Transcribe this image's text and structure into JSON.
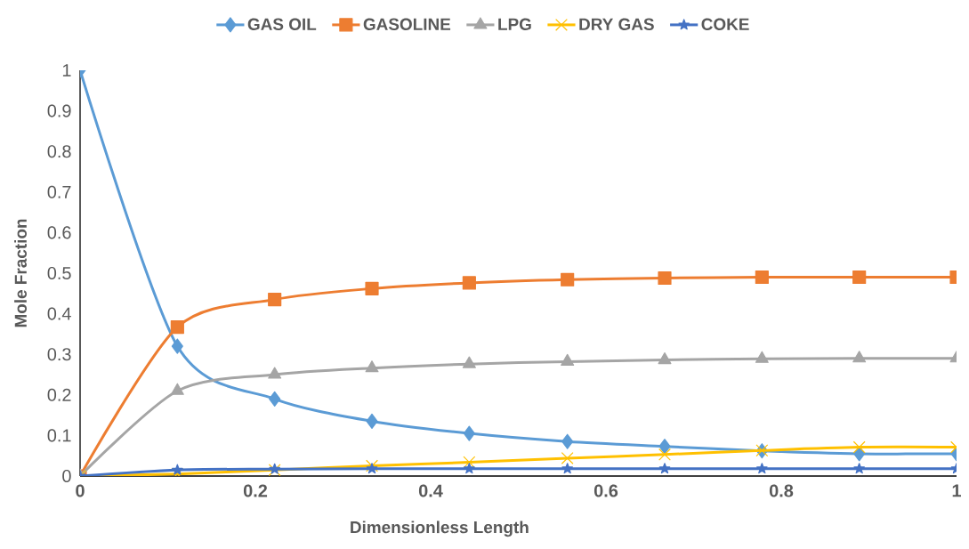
{
  "chart_data": {
    "type": "line",
    "xlabel": "Dimensionless Length",
    "ylabel": "Mole Fraction",
    "xlim": [
      0,
      1
    ],
    "ylim": [
      0,
      1
    ],
    "xticks": [
      0,
      0.2,
      0.4,
      0.6,
      0.8,
      1
    ],
    "yticks": [
      0,
      0.1,
      0.2,
      0.3,
      0.4,
      0.5,
      0.6,
      0.7,
      0.8,
      0.9,
      1
    ],
    "x": [
      0,
      0.111,
      0.222,
      0.333,
      0.444,
      0.556,
      0.667,
      0.778,
      0.889,
      1
    ],
    "grid": false,
    "legend": "top",
    "line_style": "solid",
    "series": [
      {
        "name": "GAS OIL",
        "color": "#5b9bd5",
        "marker": "diamond",
        "values": [
          1,
          0.32,
          0.19,
          0.135,
          0.105,
          0.085,
          0.073,
          0.062,
          0.055,
          0.055
        ]
      },
      {
        "name": "GASOLINE",
        "color": "#ed7d31",
        "marker": "square",
        "values": [
          0,
          0.367,
          0.435,
          0.462,
          0.476,
          0.484,
          0.488,
          0.49,
          0.49,
          0.49
        ]
      },
      {
        "name": "LPG",
        "color": "#a5a5a5",
        "marker": "triangle",
        "values": [
          0,
          0.21,
          0.25,
          0.266,
          0.276,
          0.282,
          0.286,
          0.289,
          0.29,
          0.29
        ]
      },
      {
        "name": "DRY GAS",
        "color": "#ffc000",
        "marker": "cross",
        "values": [
          0,
          0.005,
          0.015,
          0.025,
          0.034,
          0.044,
          0.053,
          0.063,
          0.071,
          0.071
        ]
      },
      {
        "name": "COKE",
        "color": "#4472c4",
        "marker": "star",
        "values": [
          0,
          0.015,
          0.017,
          0.018,
          0.018,
          0.018,
          0.018,
          0.018,
          0.018,
          0.018
        ]
      }
    ]
  }
}
